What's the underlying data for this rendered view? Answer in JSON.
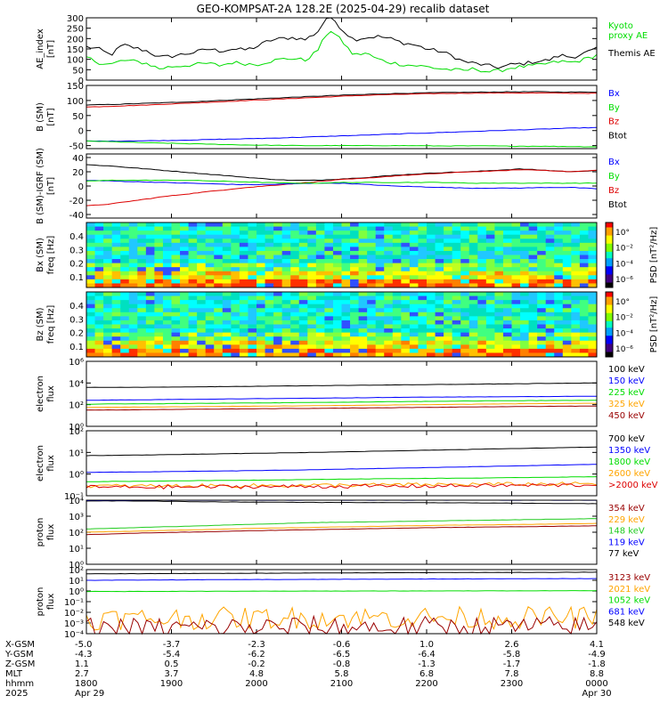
{
  "title": "GEO-KOMPSAT-2A 128.2E (2025-04-29) recalib dataset",
  "colors": {
    "black": "#000000",
    "blue": "#0000ff",
    "green": "#00dd00",
    "red": "#dd0000",
    "orange": "#ffa500",
    "darkred": "#990000",
    "lime": "#22cc22"
  },
  "chart_data": [
    {
      "id": "ae",
      "type": "line",
      "ylabel": "AE_index\n[nT]",
      "ylim": [
        0,
        300
      ],
      "yticks": [
        "0",
        "50",
        "100",
        "150",
        "200",
        "250",
        "300"
      ],
      "legend": [
        {
          "text": "Kyoto\nproxy AE",
          "color": "#00dd00"
        },
        {
          "text": "Themis AE",
          "color": "#000000"
        }
      ],
      "series": [
        {
          "name": "Themis AE",
          "color": "#000000",
          "values": [
            160,
            150,
            120,
            170,
            155,
            140,
            110,
            115,
            125,
            135,
            150,
            140,
            150,
            145,
            160,
            190,
            200,
            205,
            195,
            230,
            320,
            245,
            195,
            205,
            210,
            200,
            180,
            170,
            150,
            140,
            120,
            90,
            80,
            70,
            60,
            75,
            80,
            90,
            95,
            120,
            110,
            130,
            150
          ]
        },
        {
          "name": "Kyoto proxy AE",
          "color": "#00dd00",
          "values": [
            110,
            85,
            75,
            95,
            90,
            80,
            55,
            65,
            70,
            75,
            80,
            70,
            85,
            80,
            75,
            90,
            100,
            105,
            95,
            140,
            245,
            190,
            120,
            130,
            100,
            85,
            75,
            70,
            65,
            55,
            50,
            45,
            55,
            40,
            45,
            60,
            65,
            70,
            80,
            90,
            85,
            100,
            120
          ]
        }
      ]
    },
    {
      "id": "bsm",
      "type": "line",
      "ylabel": "B (SM)\n[nT]",
      "ylim": [
        -60,
        150
      ],
      "yticks": [
        "-50",
        "0",
        "50",
        "100",
        "150"
      ],
      "legend": [
        {
          "text": "Bx",
          "color": "#0000ff"
        },
        {
          "text": "By",
          "color": "#00dd00"
        },
        {
          "text": "Bz",
          "color": "#dd0000"
        },
        {
          "text": "Btot",
          "color": "#000000"
        }
      ],
      "series": [
        {
          "name": "Btot",
          "color": "#000000",
          "values": [
            85,
            87,
            90,
            93,
            96,
            100,
            104,
            108,
            112,
            116,
            119,
            122,
            124,
            126,
            127,
            128,
            129,
            129,
            128,
            128
          ]
        },
        {
          "name": "Bz",
          "color": "#dd0000",
          "values": [
            78,
            81,
            84,
            88,
            92,
            96,
            100,
            104,
            108,
            112,
            116,
            119,
            121,
            123,
            124,
            125,
            125,
            125,
            124,
            124
          ]
        },
        {
          "name": "Bx",
          "color": "#0000ff",
          "values": [
            -35,
            -35,
            -34,
            -33,
            -31,
            -29,
            -27,
            -25,
            -22,
            -19,
            -16,
            -13,
            -10,
            -7,
            -4,
            -1,
            2,
            5,
            8,
            10
          ]
        },
        {
          "name": "By",
          "color": "#00dd00",
          "values": [
            -35,
            -37,
            -40,
            -42,
            -44,
            -46,
            -48,
            -49,
            -50,
            -50,
            -50,
            -50,
            -50,
            -51,
            -51,
            -51,
            -52,
            -52,
            -53,
            -54
          ]
        }
      ]
    },
    {
      "id": "bdiff",
      "type": "line",
      "ylabel": "B (SM)-IGRF (SM)\n[nT]",
      "ylim": [
        -45,
        45
      ],
      "yticks": [
        "-40",
        "-20",
        "0",
        "20",
        "40"
      ],
      "legend": [
        {
          "text": "Bx",
          "color": "#0000ff"
        },
        {
          "text": "By",
          "color": "#00dd00"
        },
        {
          "text": "Bz",
          "color": "#dd0000"
        },
        {
          "text": "Btot",
          "color": "#000000"
        }
      ],
      "series": [
        {
          "name": "Btot",
          "color": "#000000",
          "values": [
            30,
            28,
            25,
            22,
            19,
            16,
            13,
            10,
            8,
            8,
            10,
            12,
            15,
            17,
            19,
            20,
            22,
            24,
            22,
            20,
            22
          ]
        },
        {
          "name": "Bz",
          "color": "#dd0000",
          "values": [
            -28,
            -25,
            -20,
            -15,
            -11,
            -7,
            -3,
            0,
            3,
            6,
            9,
            11,
            14,
            16,
            18,
            20,
            21,
            23,
            22,
            20,
            22
          ]
        },
        {
          "name": "Bx",
          "color": "#0000ff",
          "values": [
            8,
            7,
            6,
            5,
            4,
            3,
            2,
            2,
            3,
            4,
            4,
            2,
            0,
            -1,
            -2,
            -3,
            -3,
            -3,
            -2,
            -2,
            -4
          ]
        },
        {
          "name": "By",
          "color": "#00dd00",
          "values": [
            7,
            8,
            8,
            8,
            8,
            7,
            6,
            5,
            4,
            4,
            5,
            5,
            5,
            5,
            5,
            4,
            4,
            4,
            4,
            4,
            4
          ]
        }
      ]
    },
    {
      "id": "bxspec",
      "type": "heatmap",
      "ylabel": "Bx (SM)\nfreq [Hz]",
      "ylim": [
        0.02,
        0.5
      ],
      "yticks": [
        "0.1",
        "0.2",
        "0.3",
        "0.4"
      ],
      "colorbar": {
        "label": "PSD [nT²/Hz]",
        "ticks": [
          "10°",
          "10⁻²",
          "10⁻⁴",
          "10⁻⁶"
        ]
      }
    },
    {
      "id": "bzspec",
      "type": "heatmap",
      "ylabel": "Bz (SM)\nfreq [Hz]",
      "ylim": [
        0.02,
        0.5
      ],
      "yticks": [
        "0.1",
        "0.2",
        "0.3",
        "0.4"
      ],
      "colorbar": {
        "label": "PSD [nT²/Hz]",
        "ticks": [
          "10°",
          "10⁻²",
          "10⁻⁴",
          "10⁻⁶"
        ]
      }
    },
    {
      "id": "elow",
      "type": "line",
      "log": true,
      "ylabel": "electron\nflux",
      "ylim": [
        1,
        1000000
      ],
      "yticks": [
        "10⁰",
        "10²",
        "10⁴",
        "10⁶"
      ],
      "legend": [
        {
          "text": "100 keV",
          "color": "#000000"
        },
        {
          "text": "150 keV",
          "color": "#0000ff"
        },
        {
          "text": "225 keV",
          "color": "#00dd00"
        },
        {
          "text": "325 keV",
          "color": "#ffa500"
        },
        {
          "text": "450 keV",
          "color": "#990000"
        }
      ],
      "series": [
        {
          "name": "100 keV",
          "color": "#000000",
          "values": [
            3.6,
            3.6,
            3.65,
            3.7,
            3.75,
            3.8,
            3.85,
            3.9,
            3.95,
            4.0
          ]
        },
        {
          "name": "150 keV",
          "color": "#0000ff",
          "values": [
            2.4,
            2.45,
            2.5,
            2.55,
            2.6,
            2.65,
            2.7,
            2.72,
            2.75,
            2.78
          ]
        },
        {
          "name": "225 keV",
          "color": "#00dd00",
          "values": [
            2.05,
            2.08,
            2.12,
            2.16,
            2.2,
            2.25,
            2.3,
            2.35,
            2.38,
            2.4
          ]
        },
        {
          "name": "325 keV",
          "color": "#ffa500",
          "values": [
            1.75,
            1.78,
            1.82,
            1.86,
            1.9,
            1.95,
            2.0,
            2.05,
            2.1,
            2.12
          ]
        },
        {
          "name": "450 keV",
          "color": "#990000",
          "values": [
            1.5,
            1.53,
            1.58,
            1.62,
            1.66,
            1.7,
            1.75,
            1.8,
            1.84,
            1.88
          ]
        }
      ]
    },
    {
      "id": "ehigh",
      "type": "line",
      "log": true,
      "ylabel": "electron\nflux",
      "ylim": [
        0.1,
        100
      ],
      "yticks": [
        "10⁻¹",
        "10⁰",
        "10¹",
        "10²"
      ],
      "legend": [
        {
          "text": "700 keV",
          "color": "#000000"
        },
        {
          "text": "1350 keV",
          "color": "#0000ff"
        },
        {
          "text": "1800 keV",
          "color": "#00dd00"
        },
        {
          "text": "2600 keV",
          "color": "#ffa500"
        },
        {
          "text": ">2000 keV",
          "color": "#dd0000"
        }
      ],
      "series": [
        {
          "name": "700 keV",
          "color": "#000000",
          "values": [
            0.85,
            0.88,
            0.92,
            0.96,
            1.0,
            1.05,
            1.1,
            1.15,
            1.2,
            1.25
          ]
        },
        {
          "name": "1350 keV",
          "color": "#0000ff",
          "values": [
            0.08,
            0.1,
            0.13,
            0.16,
            0.2,
            0.25,
            0.3,
            0.35,
            0.4,
            0.45
          ]
        },
        {
          "name": "1800 keV",
          "color": "#00dd00",
          "values": [
            -0.35,
            -0.33,
            -0.3,
            -0.28,
            -0.25,
            -0.22,
            -0.2,
            -0.18,
            -0.15,
            -0.12
          ]
        },
        {
          "name": "2600 keV",
          "color": "#ffa500",
          "values": [
            -0.55,
            -0.55,
            -0.54,
            -0.53,
            -0.52,
            -0.5,
            -0.49,
            -0.47,
            -0.46,
            -0.45
          ]
        },
        {
          "name": ">2000 keV",
          "color": "#dd0000",
          "values": [
            -0.6,
            -0.6,
            -0.59,
            -0.58,
            -0.57,
            -0.56,
            -0.55,
            -0.53,
            -0.52,
            -0.5
          ]
        }
      ]
    },
    {
      "id": "plow",
      "type": "line",
      "log": true,
      "ylabel": "proton\nflux",
      "ylim": [
        1,
        10000
      ],
      "yticks": [
        "10⁰",
        "10¹",
        "10²",
        "10³",
        "10⁴"
      ],
      "legend": [
        {
          "text": "354 keV",
          "color": "#990000"
        },
        {
          "text": "229 keV",
          "color": "#ffa500"
        },
        {
          "text": "148 keV",
          "color": "#22cc22"
        },
        {
          "text": "119 keV",
          "color": "#0000ff"
        },
        {
          "text": "77 keV",
          "color": "#000000"
        }
      ],
      "series": [
        {
          "name": "77 keV",
          "color": "#000000",
          "values": [
            3.95,
            3.95,
            3.9,
            3.88,
            3.86,
            3.85,
            3.84,
            3.83,
            3.8,
            3.78
          ]
        },
        {
          "name": "119 keV",
          "color": "#0000ff",
          "values": [
            3.98,
            4.0,
            4.0,
            4.0,
            4.0,
            4.0,
            4.0,
            4.0,
            4.0,
            4.0
          ]
        },
        {
          "name": "148 keV",
          "color": "#22cc22",
          "values": [
            2.2,
            2.3,
            2.4,
            2.5,
            2.6,
            2.65,
            2.7,
            2.75,
            2.8,
            2.85
          ]
        },
        {
          "name": "229 keV",
          "color": "#ffa500",
          "values": [
            2.0,
            2.08,
            2.16,
            2.24,
            2.3,
            2.36,
            2.42,
            2.46,
            2.5,
            2.55
          ]
        },
        {
          "name": "354 keV",
          "color": "#990000",
          "values": [
            1.85,
            1.95,
            2.02,
            2.1,
            2.16,
            2.22,
            2.28,
            2.32,
            2.36,
            2.4
          ]
        }
      ]
    },
    {
      "id": "phigh",
      "type": "line",
      "log": true,
      "ylabel": "proton\nflux",
      "ylim": [
        0.0001,
        100
      ],
      "yticks": [
        "10⁻⁴",
        "10⁻³",
        "10⁻²",
        "10⁻¹",
        "10⁰",
        "10¹",
        "10²"
      ],
      "legend": [
        {
          "text": "3123 keV",
          "color": "#990000"
        },
        {
          "text": "2021 keV",
          "color": "#ffa500"
        },
        {
          "text": "1052 keV",
          "color": "#00dd00"
        },
        {
          "text": "681 keV",
          "color": "#0000ff"
        },
        {
          "text": "548 keV",
          "color": "#000000"
        }
      ],
      "series": [
        {
          "name": "548 keV",
          "color": "#000000",
          "values": [
            1.6,
            1.62,
            1.64,
            1.66,
            1.68,
            1.7,
            1.72,
            1.73,
            1.74,
            1.76
          ]
        },
        {
          "name": "681 keV",
          "color": "#0000ff",
          "values": [
            1.0,
            1.02,
            1.05,
            1.07,
            1.08,
            1.1,
            1.12,
            1.13,
            1.15,
            1.16
          ]
        },
        {
          "name": "1052 keV",
          "color": "#00dd00",
          "values": [
            -0.05,
            -0.04,
            -0.03,
            -0.02,
            -0.01,
            0.0,
            0.0,
            0.01,
            0.02,
            0.03
          ]
        },
        {
          "name": "2021 keV",
          "color": "#ffa500",
          "values": [
            -2.6,
            -2.6,
            -2.55,
            -2.55,
            -2.5,
            -2.5,
            -2.5,
            -2.5,
            -2.5,
            -2.5
          ]
        },
        {
          "name": "3123 keV",
          "color": "#990000",
          "values": [
            -3.5,
            -3.5,
            -3.45,
            -3.45,
            -3.4,
            -3.4,
            -3.4,
            -3.4,
            -3.4,
            -3.4
          ]
        }
      ]
    }
  ],
  "xaxis": {
    "row_labels": [
      "X-GSM",
      "Y-GSM",
      "Z-GSM",
      "MLT",
      "hhmm",
      "2025"
    ],
    "columns": [
      {
        "x": "-5.0",
        "y": "-4.3",
        "z": "1.1",
        "mlt": "2.7",
        "hhmm": "1800",
        "date": "Apr 29"
      },
      {
        "x": "-3.7",
        "y": "-5.4",
        "z": "0.5",
        "mlt": "3.7",
        "hhmm": "1900",
        "date": ""
      },
      {
        "x": "-2.3",
        "y": "-6.2",
        "z": "-0.2",
        "mlt": "4.8",
        "hhmm": "2000",
        "date": ""
      },
      {
        "x": "-0.6",
        "y": "-6.5",
        "z": "-0.8",
        "mlt": "5.8",
        "hhmm": "2100",
        "date": ""
      },
      {
        "x": "1.0",
        "y": "-6.4",
        "z": "-1.3",
        "mlt": "6.8",
        "hhmm": "2200",
        "date": ""
      },
      {
        "x": "2.6",
        "y": "-5.8",
        "z": "-1.7",
        "mlt": "7.8",
        "hhmm": "2300",
        "date": ""
      },
      {
        "x": "4.1",
        "y": "-4.9",
        "z": "-1.8",
        "mlt": "8.8",
        "hhmm": "0000",
        "date": "Apr 30"
      }
    ]
  }
}
